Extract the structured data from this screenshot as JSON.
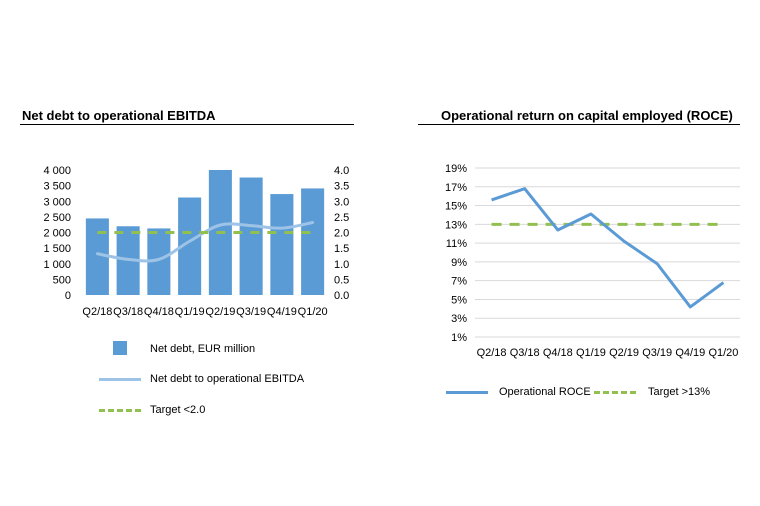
{
  "colors": {
    "bar": "#5b9bd5",
    "ratio_line": "#9dc3e6",
    "roce_line": "#5b9bd5",
    "target": "#92c050",
    "grid": "#d9d9d9"
  },
  "chart_data": [
    {
      "type": "bar",
      "title": "Net debt to operational EBITDA",
      "categories": [
        "Q2/18",
        "Q3/18",
        "Q4/18",
        "Q1/19",
        "Q2/19",
        "Q3/19",
        "Q4/19",
        "Q1/20"
      ],
      "y_ticks": [
        "0",
        "500",
        "1 000",
        "1 500",
        "2 000",
        "2 500",
        "3 000",
        "3 500",
        "4 000"
      ],
      "y2_ticks": [
        "0.0",
        "0.5",
        "1.0",
        "1.5",
        "2.0",
        "2.5",
        "3.0",
        "3.5",
        "4.0"
      ],
      "ylim": [
        0,
        4000
      ],
      "y2lim": [
        0,
        4.0
      ],
      "grid": false,
      "legend_placement": "bottom",
      "series": [
        {
          "name": "Net debt, EUR million",
          "type": "bar",
          "axis": "left",
          "values": [
            2450,
            2200,
            2130,
            3120,
            4000,
            3760,
            3230,
            3410
          ]
        },
        {
          "name": "Net debt to operational EBITDA",
          "type": "line",
          "axis": "right",
          "values": [
            1.32,
            1.14,
            1.14,
            1.72,
            2.24,
            2.22,
            2.14,
            2.32
          ]
        },
        {
          "name": "Target <2.0",
          "type": "line",
          "dashed": true,
          "axis": "right",
          "values": [
            2.0,
            2.0,
            2.0,
            2.0,
            2.0,
            2.0,
            2.0,
            2.0
          ]
        }
      ]
    },
    {
      "type": "line",
      "title": "Operational return on capital employed (ROCE)",
      "categories": [
        "Q2/18",
        "Q3/18",
        "Q4/18",
        "Q1/19",
        "Q2/19",
        "Q3/19",
        "Q4/19",
        "Q1/20"
      ],
      "y_ticks": [
        "1%",
        "3%",
        "5%",
        "7%",
        "9%",
        "11%",
        "13%",
        "15%",
        "17%",
        "19%"
      ],
      "ylim": [
        1,
        19
      ],
      "grid": true,
      "legend_placement": "bottom",
      "series": [
        {
          "name": "Operational ROCE",
          "values": [
            15.6,
            16.8,
            12.4,
            14.1,
            11.2,
            8.8,
            4.2,
            6.8
          ]
        },
        {
          "name": "Target >13%",
          "dashed": true,
          "values": [
            13,
            13,
            13,
            13,
            13,
            13,
            13,
            13
          ]
        }
      ]
    }
  ]
}
